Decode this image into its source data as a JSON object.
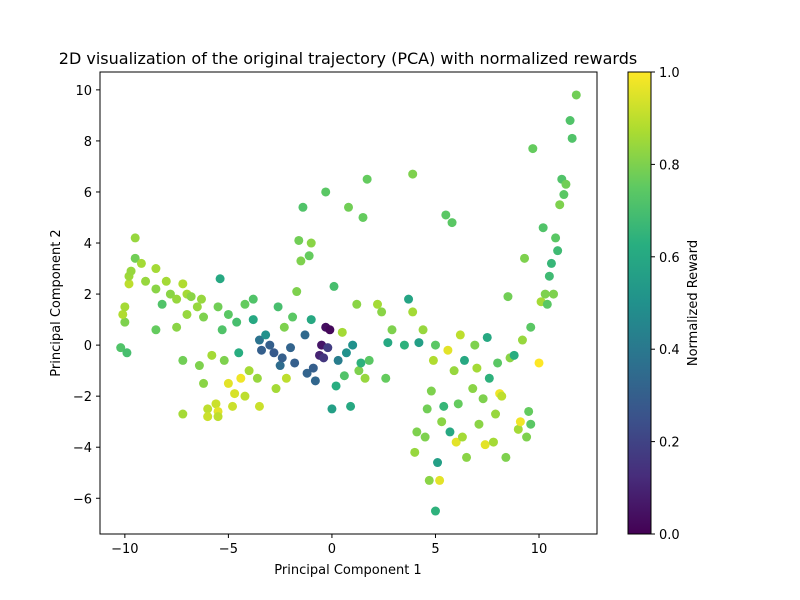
{
  "chart_data": {
    "type": "scatter",
    "title": "2D visualization of the original trajectory (PCA) with normalized rewards",
    "xlabel": "Principal Component 1",
    "ylabel": "Principal Component 2",
    "xlim": [
      -11.2,
      12.8
    ],
    "ylim": [
      -7.4,
      10.7
    ],
    "xticks": [
      -10,
      -5,
      0,
      5,
      10
    ],
    "xtick_labels": [
      "−10",
      "−5",
      "0",
      "5",
      "10"
    ],
    "yticks": [
      -6,
      -4,
      -2,
      0,
      2,
      4,
      6,
      8,
      10
    ],
    "ytick_labels": [
      "−6",
      "−4",
      "−2",
      "0",
      "2",
      "4",
      "6",
      "8",
      "10"
    ],
    "grid": false,
    "colorbar": {
      "label": "Normalized Reward",
      "colormap": "viridis",
      "range": [
        0.0,
        1.0
      ],
      "ticks": [
        0.0,
        0.2,
        0.4,
        0.6,
        0.8,
        1.0
      ],
      "tick_labels": [
        "0.0",
        "0.2",
        "0.4",
        "0.6",
        "0.8",
        "1.0"
      ]
    },
    "points": [
      {
        "x": -10.2,
        "y": -0.1,
        "c": 0.72
      },
      {
        "x": -9.9,
        "y": -0.3,
        "c": 0.7
      },
      {
        "x": -10.0,
        "y": 0.9,
        "c": 0.8
      },
      {
        "x": -10.1,
        "y": 1.2,
        "c": 0.88
      },
      {
        "x": -10.0,
        "y": 1.5,
        "c": 0.86
      },
      {
        "x": -9.8,
        "y": 2.4,
        "c": 0.9
      },
      {
        "x": -9.8,
        "y": 2.7,
        "c": 0.85
      },
      {
        "x": -9.7,
        "y": 2.9,
        "c": 0.84
      },
      {
        "x": -9.5,
        "y": 3.4,
        "c": 0.78
      },
      {
        "x": -9.5,
        "y": 4.2,
        "c": 0.84
      },
      {
        "x": -9.2,
        "y": 3.2,
        "c": 0.86
      },
      {
        "x": -9.0,
        "y": 2.5,
        "c": 0.84
      },
      {
        "x": -8.5,
        "y": 2.2,
        "c": 0.82
      },
      {
        "x": -8.5,
        "y": 3.0,
        "c": 0.86
      },
      {
        "x": -8.5,
        "y": 0.6,
        "c": 0.76
      },
      {
        "x": -8.2,
        "y": 1.6,
        "c": 0.72
      },
      {
        "x": -8.0,
        "y": 2.5,
        "c": 0.86
      },
      {
        "x": -7.8,
        "y": 2.0,
        "c": 0.82
      },
      {
        "x": -7.5,
        "y": 1.8,
        "c": 0.84
      },
      {
        "x": -7.5,
        "y": 0.7,
        "c": 0.82
      },
      {
        "x": -7.2,
        "y": 2.4,
        "c": 0.88
      },
      {
        "x": -7.0,
        "y": 2.0,
        "c": 0.86
      },
      {
        "x": -7.0,
        "y": 1.2,
        "c": 0.84
      },
      {
        "x": -7.2,
        "y": -0.6,
        "c": 0.78
      },
      {
        "x": -7.2,
        "y": -2.7,
        "c": 0.86
      },
      {
        "x": -6.8,
        "y": 1.9,
        "c": 0.82
      },
      {
        "x": -6.5,
        "y": 1.5,
        "c": 0.84
      },
      {
        "x": -6.4,
        "y": -0.8,
        "c": 0.8
      },
      {
        "x": -6.3,
        "y": 1.8,
        "c": 0.84
      },
      {
        "x": -6.2,
        "y": -1.5,
        "c": 0.82
      },
      {
        "x": -6.2,
        "y": 1.1,
        "c": 0.8
      },
      {
        "x": -6.0,
        "y": -2.5,
        "c": 0.9
      },
      {
        "x": -6.0,
        "y": -2.8,
        "c": 0.92
      },
      {
        "x": -5.8,
        "y": -0.4,
        "c": 0.86
      },
      {
        "x": -5.6,
        "y": -2.3,
        "c": 0.92
      },
      {
        "x": -5.5,
        "y": -2.6,
        "c": 0.96
      },
      {
        "x": -5.5,
        "y": -2.8,
        "c": 0.9
      },
      {
        "x": -5.5,
        "y": 1.5,
        "c": 0.78
      },
      {
        "x": -5.4,
        "y": 2.6,
        "c": 0.6
      },
      {
        "x": -5.3,
        "y": 0.6,
        "c": 0.72
      },
      {
        "x": -5.2,
        "y": -0.6,
        "c": 0.8
      },
      {
        "x": -5.0,
        "y": -1.5,
        "c": 0.96
      },
      {
        "x": -5.0,
        "y": 1.2,
        "c": 0.74
      },
      {
        "x": -4.8,
        "y": -2.4,
        "c": 0.92
      },
      {
        "x": -4.7,
        "y": -1.9,
        "c": 0.94
      },
      {
        "x": -4.6,
        "y": 0.9,
        "c": 0.7
      },
      {
        "x": -4.5,
        "y": -0.3,
        "c": 0.62
      },
      {
        "x": -4.4,
        "y": -1.3,
        "c": 0.98
      },
      {
        "x": -4.2,
        "y": 1.6,
        "c": 0.76
      },
      {
        "x": -4.2,
        "y": -2.0,
        "c": 0.9
      },
      {
        "x": -4.0,
        "y": -1.0,
        "c": 0.86
      },
      {
        "x": -3.8,
        "y": 1.0,
        "c": 0.6
      },
      {
        "x": -3.8,
        "y": 1.8,
        "c": 0.72
      },
      {
        "x": -3.6,
        "y": -1.3,
        "c": 0.84
      },
      {
        "x": -3.5,
        "y": 0.2,
        "c": 0.38
      },
      {
        "x": -3.4,
        "y": -0.2,
        "c": 0.3
      },
      {
        "x": -3.5,
        "y": -2.4,
        "c": 0.92
      },
      {
        "x": -3.2,
        "y": 0.4,
        "c": 0.5
      },
      {
        "x": -3.0,
        "y": 0.0,
        "c": 0.3
      },
      {
        "x": -2.8,
        "y": -0.3,
        "c": 0.28
      },
      {
        "x": -2.7,
        "y": -1.7,
        "c": 0.86
      },
      {
        "x": -2.6,
        "y": 1.5,
        "c": 0.7
      },
      {
        "x": -2.5,
        "y": -0.8,
        "c": 0.35
      },
      {
        "x": -2.4,
        "y": -0.5,
        "c": 0.3
      },
      {
        "x": -2.3,
        "y": 0.7,
        "c": 0.8
      },
      {
        "x": -2.2,
        "y": -1.3,
        "c": 0.9
      },
      {
        "x": -2.0,
        "y": -0.1,
        "c": 0.32
      },
      {
        "x": -1.9,
        "y": 1.1,
        "c": 0.74
      },
      {
        "x": -1.8,
        "y": -0.7,
        "c": 0.3
      },
      {
        "x": -1.7,
        "y": 2.1,
        "c": 0.8
      },
      {
        "x": -1.6,
        "y": 4.1,
        "c": 0.78
      },
      {
        "x": -1.5,
        "y": 3.3,
        "c": 0.8
      },
      {
        "x": -1.4,
        "y": 5.4,
        "c": 0.72
      },
      {
        "x": -1.3,
        "y": 0.4,
        "c": 0.34
      },
      {
        "x": -1.2,
        "y": -1.1,
        "c": 0.32
      },
      {
        "x": -1.1,
        "y": 3.5,
        "c": 0.76
      },
      {
        "x": -1.0,
        "y": 4.0,
        "c": 0.82
      },
      {
        "x": -1.0,
        "y": 1.0,
        "c": 0.6
      },
      {
        "x": -0.9,
        "y": -0.9,
        "c": 0.3
      },
      {
        "x": -0.8,
        "y": -1.4,
        "c": 0.33
      },
      {
        "x": -0.6,
        "y": -0.4,
        "c": 0.1
      },
      {
        "x": -0.5,
        "y": 0.0,
        "c": 0.06
      },
      {
        "x": -0.4,
        "y": -0.5,
        "c": 0.16
      },
      {
        "x": -0.3,
        "y": 0.7,
        "c": 0.04
      },
      {
        "x": -0.2,
        "y": -0.1,
        "c": 0.18
      },
      {
        "x": -0.1,
        "y": 0.6,
        "c": 0.02
      },
      {
        "x": -0.3,
        "y": 6.0,
        "c": 0.74
      },
      {
        "x": 0.0,
        "y": -2.5,
        "c": 0.56
      },
      {
        "x": 0.1,
        "y": 2.3,
        "c": 0.7
      },
      {
        "x": 0.2,
        "y": -1.6,
        "c": 0.62
      },
      {
        "x": 0.3,
        "y": -0.6,
        "c": 0.42
      },
      {
        "x": 0.5,
        "y": 0.5,
        "c": 0.86
      },
      {
        "x": 0.6,
        "y": -1.2,
        "c": 0.72
      },
      {
        "x": 0.7,
        "y": -0.3,
        "c": 0.5
      },
      {
        "x": 0.8,
        "y": 5.4,
        "c": 0.78
      },
      {
        "x": 0.9,
        "y": -2.4,
        "c": 0.6
      },
      {
        "x": 1.0,
        "y": 0.0,
        "c": 0.5
      },
      {
        "x": 1.2,
        "y": 1.6,
        "c": 0.82
      },
      {
        "x": 1.3,
        "y": -1.0,
        "c": 0.8
      },
      {
        "x": 1.4,
        "y": -0.7,
        "c": 0.64
      },
      {
        "x": 1.5,
        "y": 5.0,
        "c": 0.76
      },
      {
        "x": 1.6,
        "y": -1.3,
        "c": 0.84
      },
      {
        "x": 1.7,
        "y": 6.5,
        "c": 0.76
      },
      {
        "x": 1.8,
        "y": -0.6,
        "c": 0.74
      },
      {
        "x": 2.2,
        "y": 1.6,
        "c": 0.86
      },
      {
        "x": 2.4,
        "y": 1.3,
        "c": 0.82
      },
      {
        "x": 2.6,
        "y": -1.3,
        "c": 0.76
      },
      {
        "x": 2.7,
        "y": 0.1,
        "c": 0.6
      },
      {
        "x": 2.9,
        "y": 0.6,
        "c": 0.8
      },
      {
        "x": 3.5,
        "y": 0.0,
        "c": 0.64
      },
      {
        "x": 3.7,
        "y": 1.8,
        "c": 0.58
      },
      {
        "x": 3.9,
        "y": 6.7,
        "c": 0.8
      },
      {
        "x": 3.9,
        "y": 1.3,
        "c": 0.86
      },
      {
        "x": 4.0,
        "y": -4.2,
        "c": 0.84
      },
      {
        "x": 4.1,
        "y": -3.4,
        "c": 0.8
      },
      {
        "x": 4.2,
        "y": 0.1,
        "c": 0.56
      },
      {
        "x": 4.4,
        "y": 0.6,
        "c": 0.84
      },
      {
        "x": 4.5,
        "y": -3.6,
        "c": 0.8
      },
      {
        "x": 4.6,
        "y": -2.5,
        "c": 0.78
      },
      {
        "x": 4.7,
        "y": -5.3,
        "c": 0.82
      },
      {
        "x": 4.8,
        "y": -1.8,
        "c": 0.8
      },
      {
        "x": 4.9,
        "y": -0.6,
        "c": 0.88
      },
      {
        "x": 5.0,
        "y": -6.5,
        "c": 0.64
      },
      {
        "x": 5.0,
        "y": 0.0,
        "c": 0.74
      },
      {
        "x": 5.1,
        "y": -4.6,
        "c": 0.56
      },
      {
        "x": 5.2,
        "y": -5.3,
        "c": 0.96
      },
      {
        "x": 5.3,
        "y": -3.0,
        "c": 0.82
      },
      {
        "x": 5.4,
        "y": -2.4,
        "c": 0.66
      },
      {
        "x": 5.5,
        "y": 5.1,
        "c": 0.74
      },
      {
        "x": 5.6,
        "y": -0.2,
        "c": 0.96
      },
      {
        "x": 5.7,
        "y": -3.4,
        "c": 0.6
      },
      {
        "x": 5.8,
        "y": 4.8,
        "c": 0.74
      },
      {
        "x": 5.9,
        "y": -1.0,
        "c": 0.84
      },
      {
        "x": 6.0,
        "y": -3.8,
        "c": 0.96
      },
      {
        "x": 6.1,
        "y": -2.3,
        "c": 0.76
      },
      {
        "x": 6.2,
        "y": 0.4,
        "c": 0.9
      },
      {
        "x": 6.3,
        "y": -3.6,
        "c": 0.86
      },
      {
        "x": 6.4,
        "y": -0.6,
        "c": 0.6
      },
      {
        "x": 6.5,
        "y": -4.4,
        "c": 0.82
      },
      {
        "x": 6.8,
        "y": -1.7,
        "c": 0.82
      },
      {
        "x": 6.9,
        "y": 0.0,
        "c": 0.8
      },
      {
        "x": 7.0,
        "y": -0.9,
        "c": 0.86
      },
      {
        "x": 7.1,
        "y": -3.1,
        "c": 0.82
      },
      {
        "x": 7.3,
        "y": -2.1,
        "c": 0.8
      },
      {
        "x": 7.4,
        "y": -3.9,
        "c": 0.96
      },
      {
        "x": 7.5,
        "y": 0.3,
        "c": 0.6
      },
      {
        "x": 7.6,
        "y": -1.3,
        "c": 0.64
      },
      {
        "x": 7.8,
        "y": -3.8,
        "c": 0.86
      },
      {
        "x": 7.9,
        "y": -2.7,
        "c": 0.84
      },
      {
        "x": 8.0,
        "y": -0.7,
        "c": 0.74
      },
      {
        "x": 8.1,
        "y": -1.9,
        "c": 0.98
      },
      {
        "x": 8.2,
        "y": -2.0,
        "c": 0.9
      },
      {
        "x": 8.4,
        "y": -4.4,
        "c": 0.8
      },
      {
        "x": 8.5,
        "y": 1.9,
        "c": 0.78
      },
      {
        "x": 8.6,
        "y": -0.5,
        "c": 0.82
      },
      {
        "x": 8.8,
        "y": -0.4,
        "c": 0.62
      },
      {
        "x": 9.0,
        "y": -3.3,
        "c": 0.86
      },
      {
        "x": 9.1,
        "y": -3.0,
        "c": 0.98
      },
      {
        "x": 9.2,
        "y": 0.2,
        "c": 0.84
      },
      {
        "x": 9.3,
        "y": 3.4,
        "c": 0.8
      },
      {
        "x": 9.4,
        "y": -3.6,
        "c": 0.8
      },
      {
        "x": 9.5,
        "y": -2.6,
        "c": 0.76
      },
      {
        "x": 9.6,
        "y": 0.7,
        "c": 0.74
      },
      {
        "x": 9.6,
        "y": -3.1,
        "c": 0.74
      },
      {
        "x": 9.7,
        "y": 7.7,
        "c": 0.76
      },
      {
        "x": 10.0,
        "y": -0.7,
        "c": 1.0
      },
      {
        "x": 10.1,
        "y": 1.7,
        "c": 0.86
      },
      {
        "x": 10.2,
        "y": 4.6,
        "c": 0.72
      },
      {
        "x": 10.3,
        "y": 2.0,
        "c": 0.8
      },
      {
        "x": 10.4,
        "y": 1.6,
        "c": 0.74
      },
      {
        "x": 10.5,
        "y": 2.7,
        "c": 0.68
      },
      {
        "x": 10.6,
        "y": 3.2,
        "c": 0.66
      },
      {
        "x": 10.7,
        "y": 2.0,
        "c": 0.8
      },
      {
        "x": 10.8,
        "y": 4.2,
        "c": 0.74
      },
      {
        "x": 10.9,
        "y": 3.7,
        "c": 0.68
      },
      {
        "x": 11.0,
        "y": 5.5,
        "c": 0.8
      },
      {
        "x": 11.1,
        "y": 6.5,
        "c": 0.72
      },
      {
        "x": 11.2,
        "y": 5.9,
        "c": 0.74
      },
      {
        "x": 11.3,
        "y": 6.3,
        "c": 0.78
      },
      {
        "x": 11.5,
        "y": 8.8,
        "c": 0.72
      },
      {
        "x": 11.6,
        "y": 8.1,
        "c": 0.72
      },
      {
        "x": 11.8,
        "y": 9.8,
        "c": 0.78
      }
    ]
  }
}
